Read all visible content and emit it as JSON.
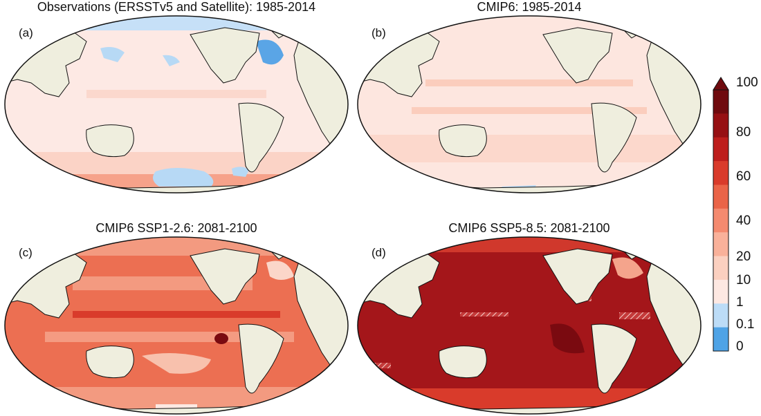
{
  "figure": {
    "panels": [
      {
        "id": "a",
        "letter": "(a)",
        "title": "Observations (ERSSTv5 and Satellite):  1985-2014",
        "mean_level": "low"
      },
      {
        "id": "b",
        "letter": "(b)",
        "title": "CMIP6:  1985-2014",
        "mean_level": "low"
      },
      {
        "id": "c",
        "letter": "(c)",
        "title": "CMIP6 SSP1-2.6:  2081-2100",
        "mean_level": "high"
      },
      {
        "id": "d",
        "letter": "(d)",
        "title": "CMIP6 SSP5-8.5:  2081-2100",
        "mean_level": "very-high"
      }
    ],
    "colorbar": {
      "ticks": [
        "100",
        "80",
        "60",
        "40",
        "20",
        "10",
        "1",
        "0.1",
        "0"
      ],
      "extend": "max",
      "colors": [
        "#4fa3e6",
        "#bcdcf7",
        "#fde8e2",
        "#fbd0c0",
        "#f9b19a",
        "#f48a6f",
        "#ea6448",
        "#d93b2b",
        "#bd1e1c",
        "#961013",
        "#6f0a0e"
      ]
    },
    "colors": {
      "land": "#efeede",
      "coast": "#111111",
      "ocean_low": "#fde9e4",
      "ocean_cold": "#b7d9f5"
    }
  }
}
